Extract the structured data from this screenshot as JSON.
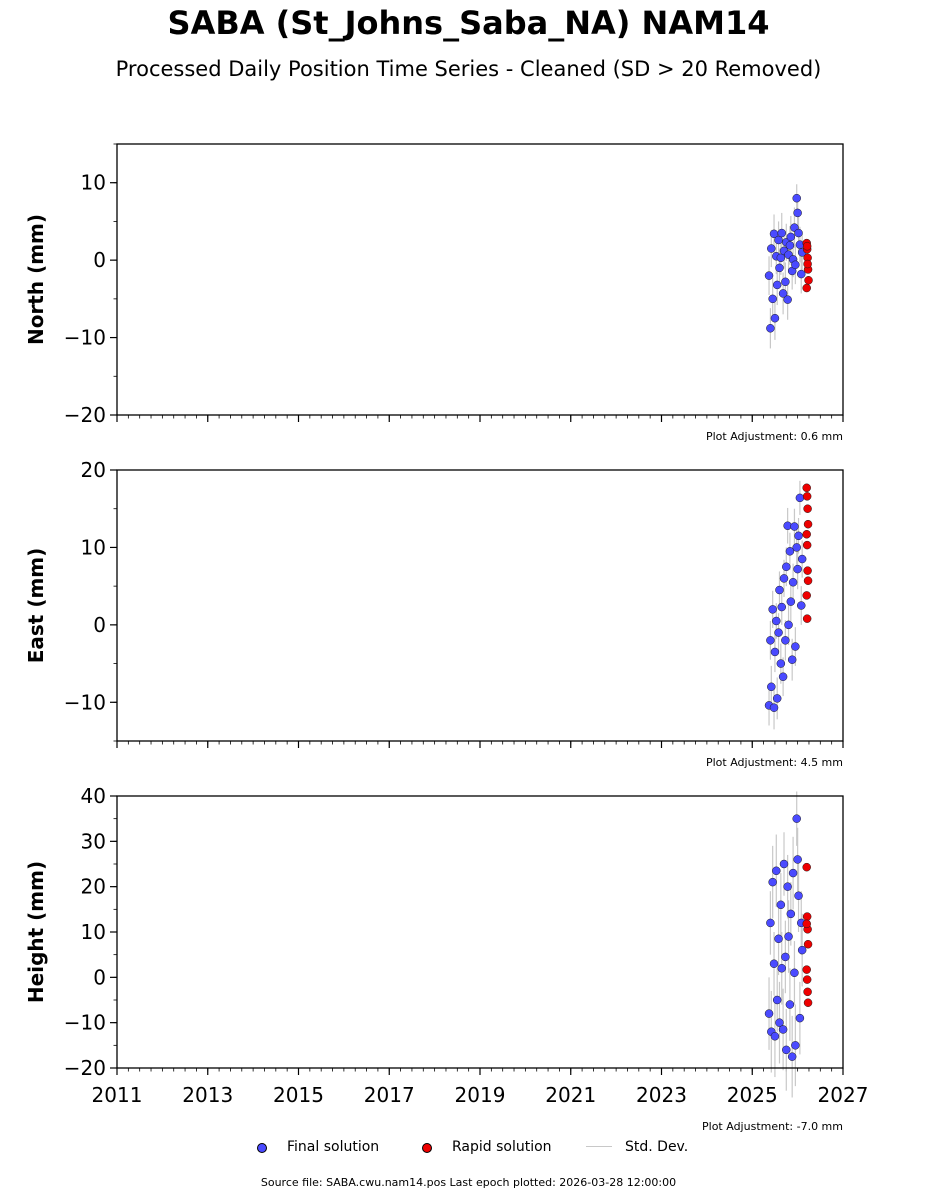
{
  "title": "SABA (St_Johns_Saba_NA) NAM14",
  "subtitle": "Processed Daily Position Time Series - Cleaned (SD > 20 Removed)",
  "legend": {
    "final": "Final solution",
    "rapid": "Rapid solution",
    "stddev": "Std. Dev."
  },
  "colors": {
    "final": "#4a4aff",
    "rapid": "#ee0000",
    "stddev": "#c8c8c8"
  },
  "footer": "Source file: SABA.cwu.nam14.pos  Last epoch plotted: 2026-03-28 12:00:00",
  "chart_data": [
    {
      "type": "scatter",
      "ylabel": "North (mm)",
      "xlim": [
        2011,
        2027
      ],
      "ylim": [
        -20,
        15
      ],
      "y_ticks": [
        -20,
        -10,
        0,
        10
      ],
      "y_tick_labels": [
        "−20",
        "−10",
        "0",
        "10"
      ],
      "x_ticks": [
        2011,
        2013,
        2015,
        2017,
        2019,
        2021,
        2023,
        2025,
        2027
      ],
      "x_tick_labels": [],
      "adjustment": "Plot Adjustment: 0.6 mm",
      "final": {
        "x": [
          2025.37,
          2025.4,
          2025.42,
          2025.45,
          2025.48,
          2025.5,
          2025.53,
          2025.55,
          2025.58,
          2025.6,
          2025.63,
          2025.65,
          2025.68,
          2025.7,
          2025.73,
          2025.75,
          2025.78,
          2025.8,
          2025.83,
          2025.85,
          2025.88,
          2025.9,
          2025.93,
          2025.95,
          2025.98,
          2026.0,
          2026.02,
          2026.05,
          2026.08,
          2026.1
        ],
        "y": [
          -2.0,
          -8.8,
          1.5,
          -5.0,
          3.4,
          -7.5,
          0.5,
          -3.2,
          2.6,
          -1.0,
          0.3,
          3.5,
          -4.3,
          1.2,
          -2.8,
          2.3,
          -5.1,
          0.7,
          1.9,
          3.0,
          -1.4,
          0.1,
          4.2,
          -0.6,
          8.0,
          6.1,
          3.5,
          2.0,
          -1.8,
          1.0
        ],
        "sd": [
          2.5,
          2.6,
          2.4,
          2.7,
          2.5,
          2.8,
          2.3,
          2.6,
          2.4,
          2.5,
          2.2,
          2.6,
          2.7,
          2.3,
          2.5,
          2.4,
          2.6,
          2.3,
          2.5,
          2.7,
          2.4,
          2.3,
          2.6,
          2.5,
          1.8,
          2.2,
          2.4,
          2.3,
          2.5,
          2.4
        ]
      },
      "rapid": {
        "x": [
          2026.2,
          2026.21,
          2026.22,
          2026.23,
          2026.24,
          2026.2,
          2026.21,
          2026.22
        ],
        "y": [
          2.2,
          1.4,
          0.3,
          -1.2,
          -2.6,
          -3.6,
          1.8,
          -0.5
        ]
      }
    },
    {
      "type": "scatter",
      "ylabel": "East (mm)",
      "xlim": [
        2011,
        2027
      ],
      "ylim": [
        -15,
        20
      ],
      "y_ticks": [
        -10,
        0,
        10,
        20
      ],
      "y_tick_labels": [
        "−10",
        "0",
        "10",
        "20"
      ],
      "x_ticks": [
        2011,
        2013,
        2015,
        2017,
        2019,
        2021,
        2023,
        2025,
        2027
      ],
      "x_tick_labels": [],
      "adjustment": "Plot Adjustment: 4.5 mm",
      "final": {
        "x": [
          2025.37,
          2025.4,
          2025.42,
          2025.45,
          2025.48,
          2025.5,
          2025.53,
          2025.55,
          2025.58,
          2025.6,
          2025.63,
          2025.65,
          2025.68,
          2025.7,
          2025.73,
          2025.75,
          2025.78,
          2025.8,
          2025.83,
          2025.85,
          2025.88,
          2025.9,
          2025.93,
          2025.95,
          2025.98,
          2026.0,
          2026.02,
          2026.05,
          2026.08,
          2026.1
        ],
        "y": [
          -10.4,
          -2.0,
          -8.0,
          2.0,
          -10.7,
          -3.5,
          0.5,
          -9.5,
          -1.0,
          4.5,
          -5.0,
          2.3,
          -6.7,
          6.0,
          -2.0,
          7.5,
          12.8,
          0.0,
          9.5,
          3.0,
          -4.5,
          5.5,
          12.7,
          -2.8,
          10.0,
          7.2,
          11.5,
          16.4,
          2.5,
          8.5
        ],
        "sd": [
          2.6,
          2.5,
          2.7,
          2.4,
          2.8,
          2.6,
          2.3,
          2.7,
          2.5,
          2.4,
          2.6,
          2.3,
          2.5,
          2.4,
          2.6,
          2.5,
          2.3,
          2.6,
          2.4,
          2.5,
          2.7,
          2.4,
          2.3,
          2.5,
          2.4,
          2.6,
          2.3,
          2.2,
          2.5,
          2.4
        ]
      },
      "rapid": {
        "x": [
          2026.2,
          2026.21,
          2026.22,
          2026.23,
          2026.2,
          2026.21,
          2026.22,
          2026.23,
          2026.2,
          2026.21
        ],
        "y": [
          17.7,
          16.6,
          15.0,
          13.0,
          11.7,
          10.3,
          7.0,
          5.7,
          3.8,
          0.8
        ]
      }
    },
    {
      "type": "scatter",
      "ylabel": "Height (mm)",
      "xlim": [
        2011,
        2027
      ],
      "ylim": [
        -20,
        40
      ],
      "y_ticks": [
        -20,
        -10,
        0,
        10,
        20,
        30,
        40
      ],
      "y_tick_labels": [
        "−20",
        "−10",
        "0",
        "10",
        "20",
        "30",
        "40"
      ],
      "x_ticks": [
        2011,
        2013,
        2015,
        2017,
        2019,
        2021,
        2023,
        2025,
        2027
      ],
      "x_tick_labels": [
        "2011",
        "2013",
        "2015",
        "2017",
        "2019",
        "2021",
        "2023",
        "2025",
        "2027"
      ],
      "adjustment": "Plot Adjustment: -7.0 mm",
      "final": {
        "x": [
          2025.37,
          2025.4,
          2025.42,
          2025.45,
          2025.48,
          2025.5,
          2025.53,
          2025.55,
          2025.58,
          2025.6,
          2025.63,
          2025.65,
          2025.68,
          2025.7,
          2025.73,
          2025.75,
          2025.78,
          2025.8,
          2025.83,
          2025.85,
          2025.88,
          2025.9,
          2025.93,
          2025.95,
          2025.98,
          2026.0,
          2026.02,
          2026.05,
          2026.08,
          2026.1
        ],
        "y": [
          -8.0,
          12.0,
          -12.0,
          21.0,
          3.0,
          -13.0,
          23.5,
          -5.0,
          8.5,
          -10.0,
          16.0,
          2.0,
          -11.5,
          25.0,
          4.5,
          -16.0,
          20.0,
          9.0,
          -6.0,
          14.0,
          -17.5,
          23.0,
          1.0,
          -15.0,
          35.0,
          26.0,
          18.0,
          -9.0,
          12.0,
          6.0
        ],
        "sd": [
          8,
          7,
          9,
          8,
          7,
          9,
          8,
          7,
          8,
          9,
          7,
          8,
          9,
          7,
          8,
          9,
          7,
          8,
          8,
          7,
          9,
          8,
          7,
          9,
          6,
          7,
          8,
          8,
          7,
          8
        ]
      },
      "rapid": {
        "x": [
          2026.2,
          2026.21,
          2026.22,
          2026.23,
          2026.2,
          2026.21,
          2026.22,
          2026.23,
          2026.2
        ],
        "y": [
          24.3,
          13.4,
          10.6,
          7.3,
          1.7,
          -0.5,
          -3.2,
          -5.6,
          11.8
        ]
      }
    }
  ]
}
